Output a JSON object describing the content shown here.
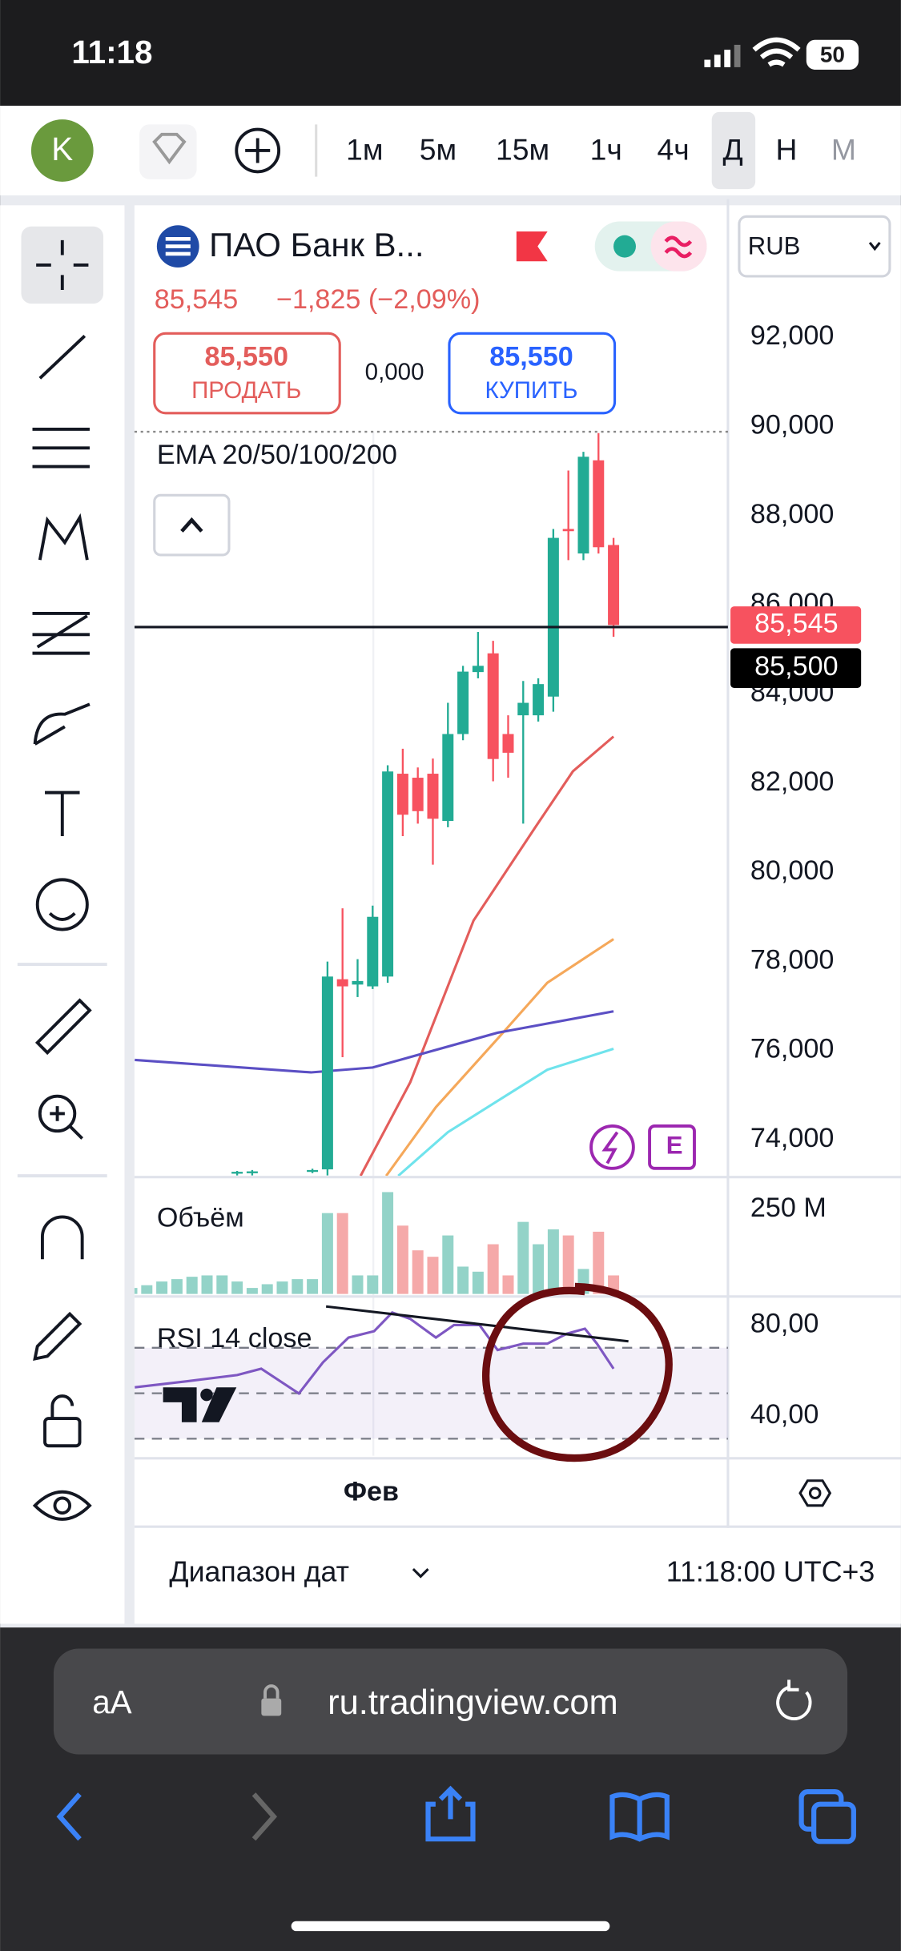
{
  "status_bar": {
    "time": "11:18",
    "battery": "50"
  },
  "toolbar": {
    "avatar": "K",
    "intervals": [
      "1м",
      "5м",
      "15м",
      "1ч",
      "4ч",
      "Д",
      "Н",
      "М"
    ]
  },
  "symbol": {
    "name": "ПАО Банк В...",
    "price": "85,545",
    "change": "−1,825 (−2,09%)",
    "sell_price": "85,550",
    "sell_label": "ПРОДАТЬ",
    "spread": "0,000",
    "buy_price": "85,550",
    "buy_label": "КУПИТЬ",
    "currency": "RUB",
    "badge": "E"
  },
  "chart_data": [
    {
      "type": "candlestick",
      "title": "EMA 20/50/100/200",
      "xlim": [
        0.18,
        39.6
      ],
      "ylim": [
        73190,
        94960
      ],
      "yticks": [
        {
          "value": 92000,
          "label": "92,000"
        },
        {
          "value": 90000,
          "label": "90,000"
        },
        {
          "value": 88000,
          "label": "88,000"
        },
        {
          "value": 86000,
          "label": "86,000"
        },
        {
          "value": 84000,
          "label": "84,000"
        },
        {
          "value": 82000,
          "label": "82,000"
        },
        {
          "value": 80000,
          "label": "80,000"
        },
        {
          "value": 78000,
          "label": "78,000"
        },
        {
          "value": 76000,
          "label": "76,000"
        },
        {
          "value": 74000,
          "label": "74,000"
        }
      ],
      "open": [
        null,
        null,
        null,
        null,
        null,
        null,
        null,
        73250,
        73250,
        null,
        null,
        null,
        73300,
        73335,
        77600,
        77480,
        77440,
        77660,
        82210,
        82120,
        82210,
        81150,
        83100,
        84490,
        84910,
        83100,
        83520,
        83520,
        83940,
        87700,
        87150,
        89240,
        87340
      ],
      "high": [
        null,
        null,
        null,
        null,
        null,
        null,
        null,
        73300,
        73320,
        null,
        null,
        null,
        73350,
        77995,
        79190,
        78050,
        79250,
        82400,
        82770,
        82350,
        82550,
        83800,
        84630,
        85390,
        85190,
        83520,
        84290,
        84350,
        87700,
        89010,
        89430,
        89850,
        87500
      ],
      "low": [
        null,
        null,
        null,
        null,
        null,
        null,
        null,
        73200,
        73200,
        null,
        null,
        null,
        73250,
        73200,
        75850,
        77200,
        77380,
        77520,
        80810,
        81090,
        80170,
        81010,
        82960,
        84350,
        82040,
        82120,
        81090,
        83380,
        83600,
        87000,
        87000,
        87150,
        85280
      ],
      "close": [
        null,
        null,
        null,
        null,
        null,
        null,
        null,
        73280,
        73290,
        null,
        null,
        null,
        73320,
        77660,
        77440,
        77560,
        79000,
        82260,
        81290,
        81370,
        81200,
        83100,
        84500,
        84630,
        82540,
        82680,
        83800,
        84220,
        87500,
        87650,
        89320,
        87290,
        85545
      ],
      "up_color": "#22ab94",
      "down_color": "#f7525f",
      "series": [
        {
          "color": "#e35d5b",
          "x": [
            15.2,
            18.5,
            22.7,
            26.8,
            29.3,
            32
          ],
          "values": [
            73190,
            75290,
            78915,
            81007,
            82263,
            83044
          ]
        },
        {
          "color": "#f5a85a",
          "x": [
            16.9,
            20.2,
            24.3,
            27.6,
            30.1,
            32
          ],
          "values": [
            73190,
            74730,
            76265,
            77520,
            78078,
            78500
          ]
        },
        {
          "color": "#6fe3ec",
          "x": [
            17.7,
            21.0,
            24.3,
            27.6,
            32
          ],
          "values": [
            73190,
            74170,
            74870,
            75570,
            76040
          ]
        },
        {
          "color": "#5b4fc4",
          "x": [
            0.2,
            11.9,
            16.0,
            24.3,
            32
          ],
          "values": [
            75790,
            75510,
            75620,
            76400,
            76880
          ]
        }
      ],
      "last_price": {
        "value": 85545,
        "label": "85,545"
      },
      "cursor_price": {
        "value": 85500,
        "label": "85,500"
      }
    },
    {
      "type": "bar",
      "title": "Объём",
      "xlim": [
        0.18,
        39.6
      ],
      "ylim": [
        0,
        338
      ],
      "yticks": [
        {
          "value": 250,
          "label": "250 M"
        }
      ],
      "values": [
        18,
        26,
        37,
        44,
        51,
        55,
        55,
        37,
        18,
        29,
        37,
        44,
        44,
        239,
        239,
        55,
        55,
        301,
        202,
        129,
        110,
        173,
        81,
        66,
        147,
        55,
        213,
        147,
        191,
        173,
        74,
        184,
        55
      ],
      "up_color": "#93d3c8",
      "down_color": "#f5a9a9"
    },
    {
      "type": "line",
      "title": "RSI 14 close",
      "xlim": [
        0.18,
        39.6
      ],
      "ylim": [
        22.5,
        92
      ],
      "yticks": [
        {
          "value": 80,
          "label": "80,00"
        },
        {
          "value": 40,
          "label": "40,00"
        }
      ],
      "bands": [
        70,
        50,
        30
      ],
      "x": [
        0.2,
        3.7,
        7.0,
        8.6,
        11.1,
        12.7,
        14.4,
        16.1,
        17.3,
        18.5,
        20.2,
        21.4,
        23.1,
        24.3,
        26.0,
        27.6,
        28.9,
        30.1,
        30.9,
        32
      ],
      "values": [
        52.6,
        55.3,
        58,
        60.8,
        49.9,
        63.6,
        74.5,
        77.3,
        85.5,
        82.7,
        74.5,
        80,
        80,
        69,
        71.8,
        71.8,
        76.2,
        78.4,
        71.8,
        60.8
      ],
      "color": "#7e57c2",
      "xticks": [
        {
          "value": 15.9,
          "label": "Фев"
        }
      ]
    }
  ],
  "footer": {
    "date_range": "Диапазон дат",
    "time": "11:18:00 UTC+3"
  },
  "browser": {
    "text_size": "aA",
    "url": "ru.tradingview.com"
  }
}
